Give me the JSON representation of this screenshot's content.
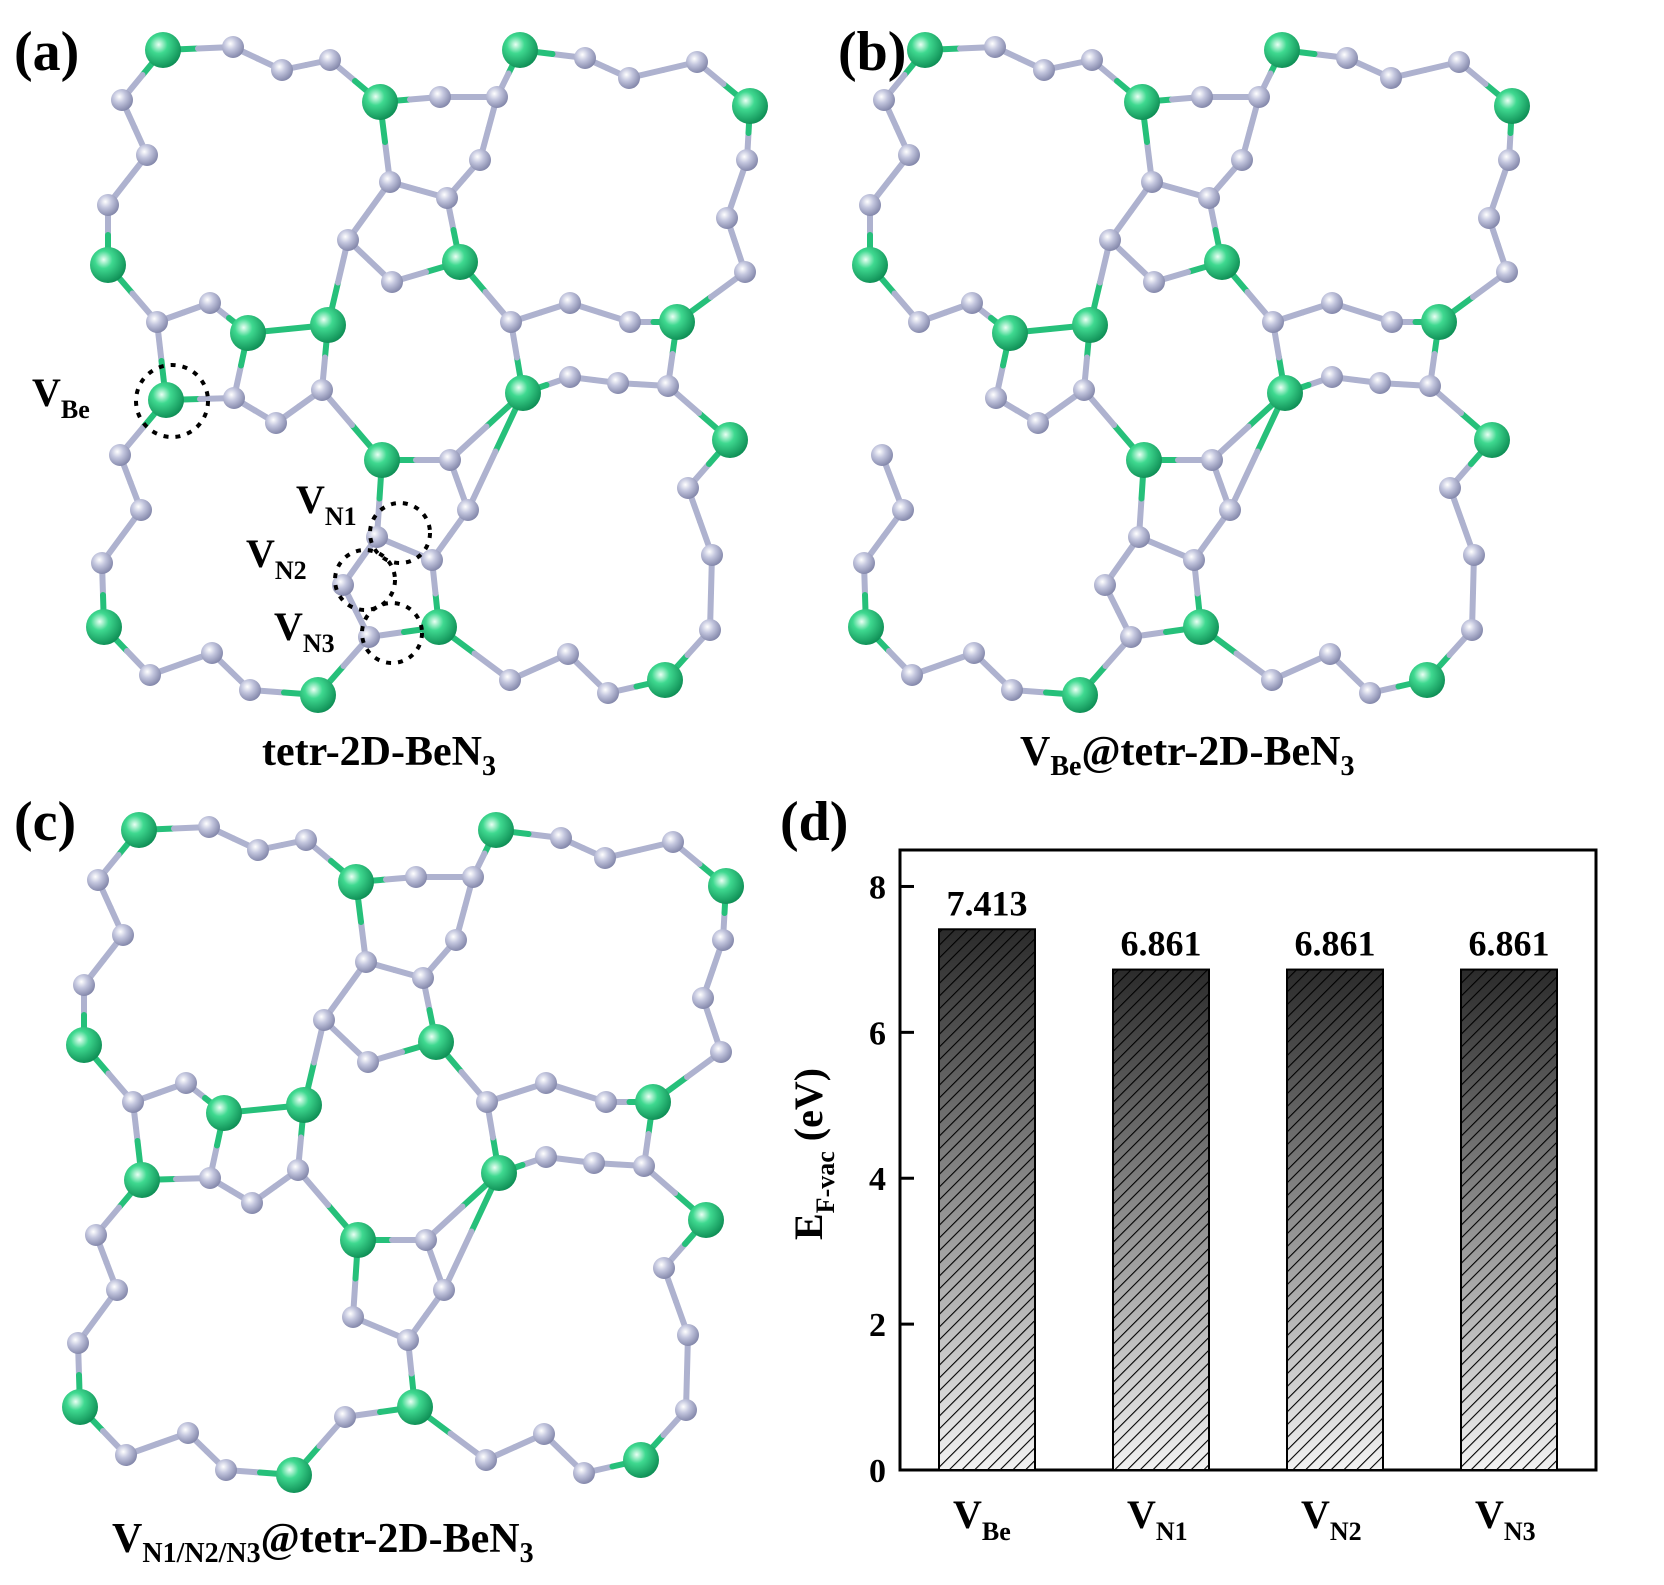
{
  "colors": {
    "beryllium": "#1fbf78",
    "nitrogen": "#aeb2cf",
    "bond_n": "#aeb2cf",
    "bond_be": "#26c07a",
    "bar_dark": "#2b2b2b",
    "bar_light": "#f2f2f2"
  },
  "panels": {
    "a": {
      "label": "(a)",
      "caption_main": "tetr-2D-BeN",
      "caption_sub": "3",
      "sites": {
        "vbe": {
          "main": "V",
          "sub": "Be"
        },
        "vn1": {
          "main": "V",
          "sub": "N1"
        },
        "vn2": {
          "main": "V",
          "sub": "N2"
        },
        "vn3": {
          "main": "V",
          "sub": "N3"
        }
      }
    },
    "b": {
      "label": "(b)",
      "caption_v": "V",
      "caption_v_sub": "Be",
      "caption_main": "@tetr-2D-BeN",
      "caption_sub": "3"
    },
    "c": {
      "label": "(c)",
      "caption_v": "V",
      "caption_v_sub": "N1/N2/N3",
      "caption_main": "@tetr-2D-BeN",
      "caption_sub": "3"
    },
    "d": {
      "label": "(d)"
    }
  },
  "chart_data": {
    "type": "bar",
    "title": "",
    "categories": [
      {
        "main": "V",
        "sub": "Be"
      },
      {
        "main": "V",
        "sub": "N1"
      },
      {
        "main": "V",
        "sub": "N2"
      },
      {
        "main": "V",
        "sub": "N3"
      }
    ],
    "values": [
      7.413,
      6.861,
      6.861,
      6.861
    ],
    "data_labels": [
      "7.413",
      "6.861",
      "6.861",
      "6.861"
    ],
    "ylabel_main": "E",
    "ylabel_sub": "F-vac",
    "ylabel_unit": " (eV)",
    "ylim": [
      0,
      8.5
    ],
    "yticks": [
      0,
      2,
      4,
      6,
      8
    ],
    "grid": false,
    "legend": "none",
    "bar_pattern": "diagonal hatch, dark-to-light gradient"
  }
}
